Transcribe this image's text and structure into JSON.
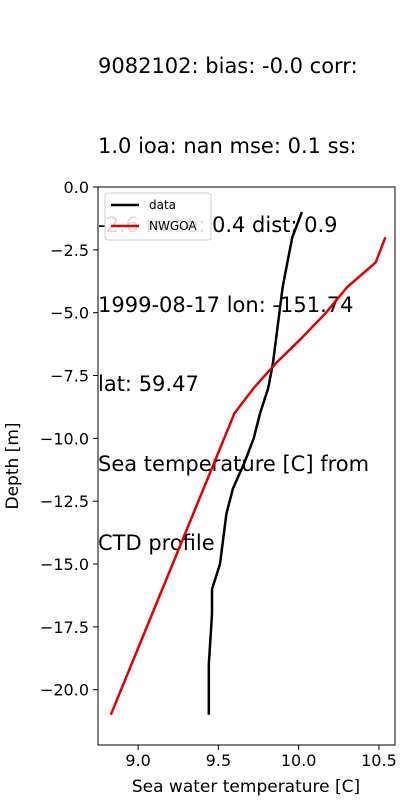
{
  "chart_data": {
    "type": "line",
    "title_lines": [
      "9082102: bias: -0.0  corr:",
      "1.0  ioa: nan  mse: 0.1  ss:",
      "-2.6  rmse: 0.4  dist: 0.9",
      "1999-08-17 lon: -151.74",
      "lat: 59.47",
      "Sea temperature [C] from",
      "CTD profile"
    ],
    "xlabel": "Sea water temperature [C]",
    "ylabel": "Depth [m]",
    "xlim": [
      8.75,
      10.6
    ],
    "ylim": [
      -22.2,
      0
    ],
    "xticks": [
      9.0,
      9.5,
      10.0,
      10.5
    ],
    "xtick_labels": [
      "9.0",
      "9.5",
      "10.0",
      "10.5"
    ],
    "yticks": [
      0,
      -2.5,
      -5,
      -7.5,
      -10,
      -12.5,
      -15,
      -17.5,
      -20
    ],
    "ytick_labels": [
      "0.0",
      "−2.5",
      "−5.0",
      "−7.5",
      "−10.0",
      "−12.5",
      "−15.0",
      "−17.5",
      "−20.0"
    ],
    "legend_position": "top-left",
    "grid": false,
    "series": [
      {
        "name": "data",
        "color": "#000000",
        "x": [
          10.02,
          9.96,
          9.93,
          9.9,
          9.88,
          9.86,
          9.84,
          9.81,
          9.76,
          9.72,
          9.66,
          9.59,
          9.55,
          9.53,
          9.51,
          9.46,
          9.46,
          9.45,
          9.44,
          9.44,
          9.44
        ],
        "y": [
          -1,
          -2,
          -3,
          -4,
          -5,
          -6,
          -7,
          -8,
          -9,
          -10,
          -11,
          -12,
          -13,
          -14,
          -15,
          -16,
          -17,
          -18,
          -19,
          -20,
          -21
        ]
      },
      {
        "name": "NWGOA",
        "color": "#e00000",
        "x": [
          10.54,
          10.48,
          10.3,
          10.17,
          10.02,
          9.86,
          9.72,
          9.6,
          8.83
        ],
        "y": [
          -2,
          -3,
          -4,
          -5,
          -6,
          -7,
          -8,
          -9,
          -21
        ]
      }
    ]
  }
}
